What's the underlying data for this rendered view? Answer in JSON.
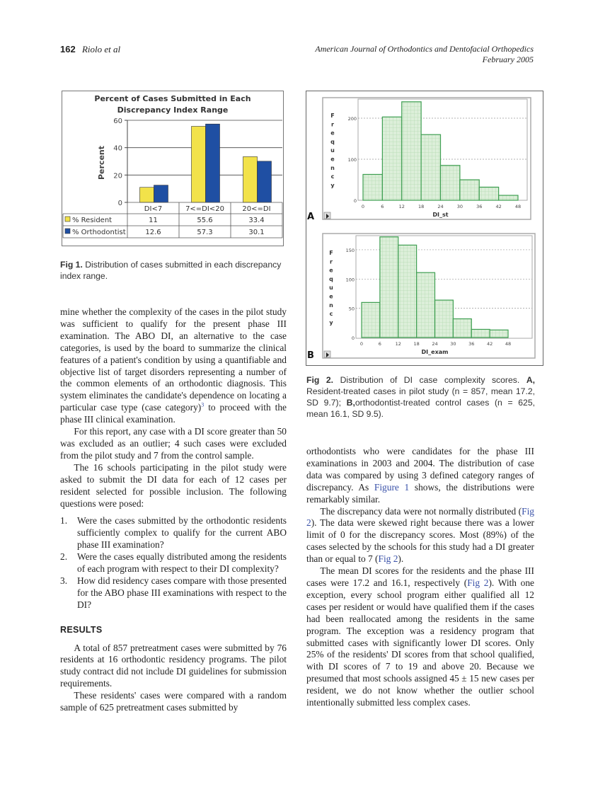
{
  "header": {
    "page_number": "162",
    "authors": "Riolo et al",
    "journal": "American Journal of Orthodontics and Dentofacial Orthopedics",
    "date": "February 2005"
  },
  "fig1": {
    "label": "Fig 1.",
    "caption": "Distribution of cases submitted in each discrepancy index range."
  },
  "fig2": {
    "label": "Fig 2.",
    "caption_a_label": "A,",
    "caption_a": "Resident-treated cases in pilot study (n = 857, mean 17.2, SD 9.7);",
    "caption_b_label": "B,",
    "caption_b": "orthodontist-treated control cases (n = 625, mean 16.1, SD 9.5).",
    "panel_a": "A",
    "panel_b": "B"
  },
  "chart_data": [
    {
      "type": "bar",
      "title": "Percent of Cases Submitted in Each Discrepancy Index Range",
      "title_lines": [
        "Percent of Cases Submitted in Each",
        "Discrepancy Index Range"
      ],
      "ylabel": "Percent",
      "xlabel": "",
      "ylim": [
        0,
        60
      ],
      "yticks": [
        "0",
        "20",
        "40",
        "60"
      ],
      "categories": [
        "DI<7",
        "7<=DI<20",
        "20<=DI"
      ],
      "series": [
        {
          "name": "% Resident",
          "color": "#f2e24a",
          "values": [
            11,
            55.6,
            33.4
          ],
          "labels": [
            "11",
            "55.6",
            "33.4"
          ]
        },
        {
          "name": "% Orthodontist",
          "color": "#1f4fa3",
          "values": [
            12.6,
            57.3,
            30.1
          ],
          "labels": [
            "12.6",
            "57.3",
            "30.1"
          ]
        }
      ],
      "grid": true,
      "legend": "data-table-bottom"
    },
    {
      "type": "bar",
      "title": "",
      "xlabel": "DI_st",
      "ylabel": "Frequency",
      "bin_edges": [
        0,
        6,
        12,
        18,
        24,
        30,
        36,
        42,
        48
      ],
      "xticks": [
        "0",
        "6",
        "12",
        "18",
        "24",
        "30",
        "36",
        "42",
        "48"
      ],
      "values": [
        63,
        203,
        240,
        160,
        85,
        50,
        32,
        12
      ],
      "ylim": [
        0,
        245
      ],
      "yticks": [
        "0",
        "100",
        "200"
      ],
      "grid": true
    },
    {
      "type": "bar",
      "title": "",
      "xlabel": "DI_exam",
      "ylabel": "Frequency",
      "bin_edges": [
        0,
        6,
        12,
        18,
        24,
        30,
        36,
        42,
        48
      ],
      "xticks": [
        "0",
        "6",
        "12",
        "18",
        "24",
        "30",
        "36",
        "42",
        "48"
      ],
      "values": [
        60,
        172,
        158,
        111,
        64,
        32,
        14,
        13
      ],
      "ylim": [
        0,
        174
      ],
      "yticks": [
        "0",
        "50",
        "100",
        "150"
      ],
      "grid": true
    }
  ],
  "left": {
    "p1a": "mine whether the complexity of the cases in the pilot study was sufficient to qualify for the present phase III examination. The ABO DI, an alternative to the case categories, is used by the board to summarize the clinical features of a patient's condition by using a quantifiable and objective list of target disorders representing a number of the common elements of an orthodontic diagnosis. This system eliminates the candidate's dependence on locating a particular case type (case category)",
    "p1_ref": "3",
    "p1b": " to proceed with the phase III clinical examination.",
    "p2": "For this report, any case with a DI score greater than 50 was excluded as an outlier; 4 such cases were excluded from the pilot study and 7 from the control sample.",
    "p3": "The 16 schools participating in the pilot study were asked to submit the DI data for each of 12 cases per resident selected for possible inclusion. The following questions were posed:",
    "list": [
      {
        "num": "1.",
        "text": "Were the cases submitted by the orthodontic residents sufficiently complex to qualify for the current ABO phase III examination?"
      },
      {
        "num": "2.",
        "text": "Were the cases equally distributed among the residents of each program with respect to their DI complexity?"
      },
      {
        "num": "3.",
        "text": "How did residency cases compare with those presented for the ABO phase III examinations with respect to the DI?"
      }
    ],
    "heading": "RESULTS",
    "p4": "A total of 857 pretreatment cases were submitted by 76 residents at 16 orthodontic residency programs. The pilot study contract did not include DI guidelines for submission requirements.",
    "p5": "These residents' cases were compared with a random sample of 625 pretreatment cases submitted by"
  },
  "right": {
    "p1a": "orthodontists who were candidates for the phase III examinations in 2003 and 2004. The distribution of case data was compared by using 3 defined category ranges of discrepancy. As ",
    "p1_link": "Figure 1",
    "p1b": " shows, the distributions were remarkably similar.",
    "p2a": "The discrepancy data were not normally distributed (",
    "p2_link1": "Fig 2",
    "p2b": "). The data were skewed right because there was a lower limit of 0 for the discrepancy scores. Most (89%) of the cases selected by the schools for this study had a DI greater than or equal to 7 (",
    "p2_link2": "Fig 2",
    "p2c": ").",
    "p3a": "The mean DI scores for the residents and the phase III cases were 17.2 and 16.1, respectively (",
    "p3_link": "Fig 2",
    "p3b": "). With one exception, every school program either qualified all 12 cases per resident or would have qualified them if the cases had been reallocated among the residents in the same program. The exception was a residency program that submitted cases with significantly lower DI scores. Only 25% of the residents' DI scores from that school qualified, with DI scores of 7 to 19 and above 20. Because we presumed that most schools assigned 45 ± 15 new cases per resident, we do not know whether the outlier school intentionally submitted less complex cases."
  }
}
